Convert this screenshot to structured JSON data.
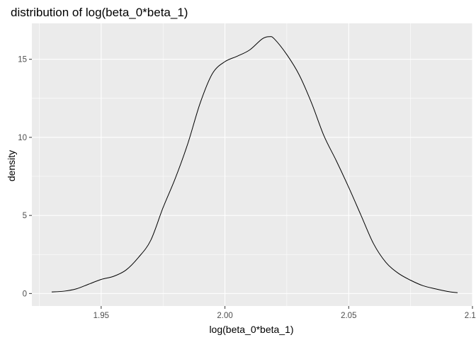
{
  "chart_data": {
    "type": "line",
    "subtype": "density",
    "title": "distribution of log(beta_0*beta_1)",
    "xlabel": "log(beta_0*beta_1)",
    "ylabel": "density",
    "xlim": [
      1.922,
      2.1
    ],
    "ylim": [
      -0.8,
      17.3
    ],
    "x_ticks": [
      1.95,
      2.0,
      2.05,
      2.1
    ],
    "x_tick_labels": [
      "1.95",
      "2.00",
      "2.05",
      "2.10"
    ],
    "y_ticks": [
      0,
      5,
      10,
      15
    ],
    "y_tick_labels": [
      "0",
      "5",
      "10",
      "15"
    ],
    "series": [
      {
        "name": "density",
        "x": [
          1.93,
          1.935,
          1.94,
          1.945,
          1.95,
          1.955,
          1.96,
          1.965,
          1.97,
          1.975,
          1.98,
          1.985,
          1.99,
          1.995,
          2.0,
          2.005,
          2.01,
          2.015,
          2.018,
          2.02,
          2.025,
          2.03,
          2.035,
          2.04,
          2.045,
          2.05,
          2.055,
          2.06,
          2.065,
          2.07,
          2.075,
          2.08,
          2.085,
          2.09,
          2.094
        ],
        "y": [
          0.1,
          0.15,
          0.3,
          0.6,
          0.9,
          1.1,
          1.5,
          2.3,
          3.4,
          5.5,
          7.4,
          9.6,
          12.2,
          14.1,
          14.85,
          15.2,
          15.6,
          16.3,
          16.45,
          16.3,
          15.3,
          14.0,
          12.2,
          10.1,
          8.5,
          6.8,
          5.0,
          3.2,
          2.0,
          1.3,
          0.85,
          0.5,
          0.3,
          0.13,
          0.05
        ]
      }
    ],
    "grid": true,
    "background": "#ebebeb",
    "grid_major_color": "#ffffff",
    "line_color": "#000000",
    "legend": "none"
  }
}
